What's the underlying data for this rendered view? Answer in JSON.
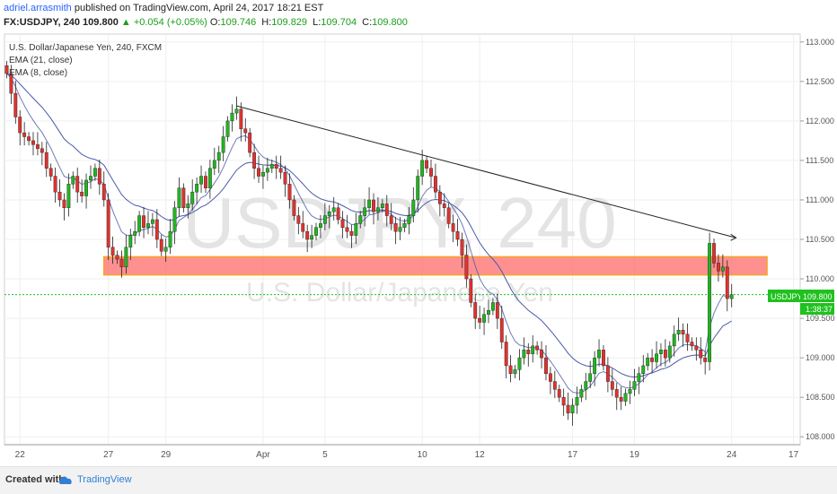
{
  "header": {
    "author": "adriel.arrasmith",
    "published": "published on TradingView.com, April 24, 2017 18:21 EST",
    "symbol": "FX:USDJPY, 240",
    "last": "109.800",
    "change": "▲ +0.054 (+0.05%)",
    "open_label": "O:",
    "open": "109.746",
    "high_label": "H:",
    "high": "109.829",
    "low_label": "L:",
    "low": "109.704",
    "close_label": "C:",
    "close": "109.800"
  },
  "legend": {
    "title": "U.S. Dollar/Japanese Yen, 240, FXCM",
    "ema1": "EMA (21, close)",
    "ema2": "EMA (8, close)"
  },
  "watermark": {
    "symbol": "USDJPY, 240",
    "name": "U.S. Dollar/Japanese Yen"
  },
  "price_tags": {
    "symbol": "USDJPY",
    "price": "109.800",
    "countdown": "1:38:37"
  },
  "footer": {
    "created": "Created with",
    "brand": "TradingView"
  },
  "chart_data": {
    "type": "candlestick",
    "title": "U.S. Dollar/Japanese Yen, 240, FXCM",
    "ylim": [
      107.9,
      113.1
    ],
    "y_ticks": [
      "113.000",
      "112.500",
      "112.000",
      "111.500",
      "111.000",
      "110.500",
      "110.000",
      "109.500",
      "109.000",
      "108.500",
      "108.000"
    ],
    "x_ticks": [
      {
        "label": "22",
        "i": 3
      },
      {
        "label": "27",
        "i": 23
      },
      {
        "label": "29",
        "i": 36
      },
      {
        "label": "Apr",
        "i": 58
      },
      {
        "label": "5",
        "i": 72
      },
      {
        "label": "10",
        "i": 94
      },
      {
        "label": "12",
        "i": 107
      },
      {
        "label": "17",
        "i": 128
      },
      {
        "label": "19",
        "i": 142
      },
      {
        "label": "24",
        "i": 164
      },
      {
        "label": "17",
        "i": 178
      }
    ],
    "n_slots": 180,
    "colors": {
      "up": "#21b521",
      "down": "#e0322f",
      "ema": "#4a5aa8",
      "zone_fill": "#ff6b6b",
      "zone_border": "#f5a623",
      "price_line": "#1fc11f"
    },
    "support_zone": {
      "from": 110.05,
      "to": 110.28,
      "i_start": 22,
      "i_end": 172
    },
    "trendline": {
      "i1": 52,
      "y1": 112.19,
      "i2": 165,
      "y2": 110.52
    },
    "current_price": 109.8,
    "closes": [
      112.6,
      112.35,
      112.05,
      111.85,
      111.8,
      111.75,
      111.7,
      111.65,
      111.6,
      111.4,
      111.3,
      111.1,
      111.0,
      110.9,
      111.2,
      111.3,
      111.1,
      111.05,
      111.25,
      111.3,
      111.4,
      111.2,
      111.0,
      110.4,
      110.3,
      110.25,
      110.15,
      110.4,
      110.55,
      110.6,
      110.8,
      110.65,
      110.7,
      110.75,
      110.5,
      110.35,
      110.4,
      110.6,
      110.9,
      111.15,
      110.9,
      110.95,
      111.1,
      111.2,
      111.3,
      111.15,
      111.4,
      111.5,
      111.6,
      111.8,
      112.0,
      112.1,
      112.15,
      111.9,
      111.85,
      111.6,
      111.4,
      111.3,
      111.35,
      111.4,
      111.45,
      111.4,
      111.35,
      111.2,
      111.0,
      110.8,
      110.7,
      110.6,
      110.5,
      110.55,
      110.65,
      110.7,
      110.8,
      110.85,
      110.9,
      110.75,
      110.65,
      110.6,
      110.55,
      110.7,
      110.8,
      110.9,
      111.0,
      110.85,
      110.9,
      110.95,
      110.8,
      110.7,
      110.6,
      110.65,
      110.7,
      110.8,
      111.0,
      111.3,
      111.5,
      111.4,
      111.3,
      111.1,
      110.95,
      110.9,
      110.7,
      110.6,
      110.5,
      110.3,
      110.0,
      109.7,
      109.5,
      109.45,
      109.55,
      109.6,
      109.7,
      109.5,
      109.2,
      108.9,
      108.8,
      108.85,
      109.0,
      109.1,
      109.05,
      109.15,
      109.1,
      109.0,
      108.8,
      108.7,
      108.6,
      108.5,
      108.4,
      108.3,
      108.4,
      108.5,
      108.6,
      108.7,
      108.8,
      109.0,
      109.1,
      108.9,
      108.7,
      108.6,
      108.5,
      108.45,
      108.55,
      108.6,
      108.7,
      108.8,
      108.9,
      109.0,
      108.95,
      109.05,
      109.1,
      109.0,
      109.15,
      109.3,
      109.35,
      109.3,
      109.2,
      109.15,
      109.1,
      109.0,
      108.95,
      110.45,
      110.2,
      110.1,
      110.15,
      109.75,
      109.8
    ]
  }
}
